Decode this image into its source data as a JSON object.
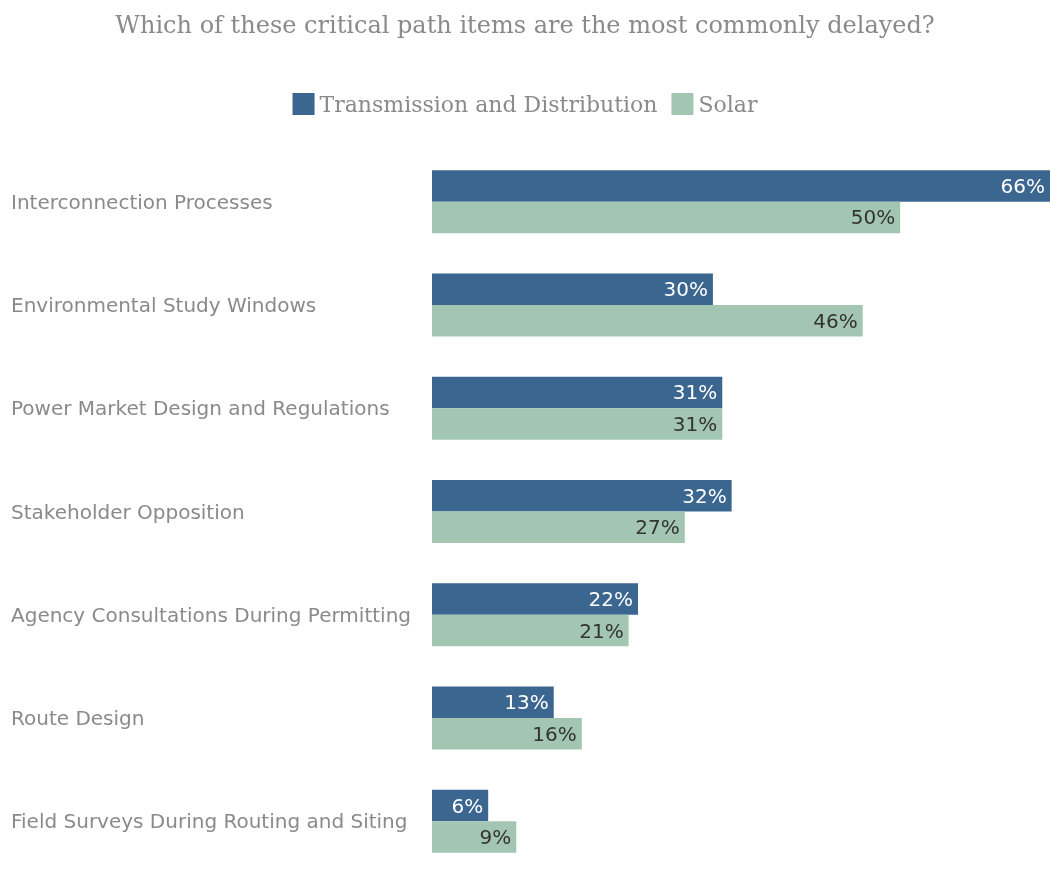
{
  "chart_data": {
    "type": "bar",
    "orientation": "horizontal",
    "title": "Which of these critical path items are the most commonly delayed?",
    "categories": [
      "Interconnection Processes",
      "Environmental Study Windows",
      "Power Market Design and Regulations",
      "Stakeholder Opposition",
      "Agency Consultations During Permitting",
      "Route Design",
      "Field Surveys During Routing and Siting"
    ],
    "series": [
      {
        "name": "Transmission and Distribution",
        "color": "#3a6690",
        "values": [
          66,
          30,
          31,
          32,
          22,
          13,
          6
        ],
        "value_labels": [
          "66%",
          "30%",
          "31%",
          "32%",
          "22%",
          "13%",
          "6%"
        ]
      },
      {
        "name": "Solar",
        "color": "#a3c6b2",
        "values": [
          50,
          46,
          31,
          27,
          21,
          16,
          9
        ],
        "value_labels": [
          "50%",
          "46%",
          "31%",
          "27%",
          "21%",
          "16%",
          "9%"
        ]
      }
    ],
    "xlim": [
      0,
      66
    ],
    "tick_labels": "y",
    "grid": false,
    "legend": "top"
  }
}
